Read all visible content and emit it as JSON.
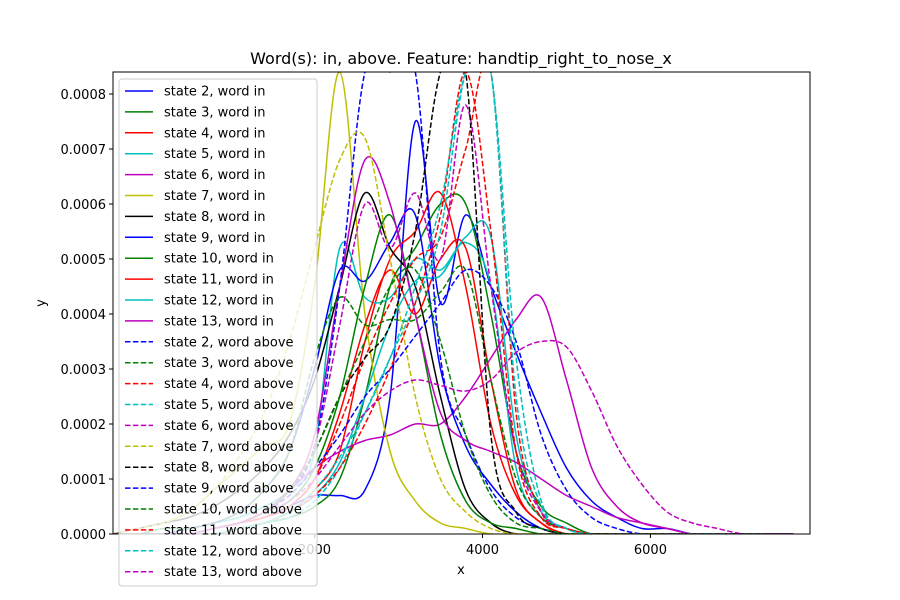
{
  "chart_data": {
    "type": "line",
    "title": "Word(s): in, above. Feature: handtip_right_to_nose_x",
    "xlabel": "x",
    "ylabel": "y",
    "xlim": [
      -400,
      7900
    ],
    "ylim": [
      0,
      0.00084
    ],
    "x_ticks": [
      2000,
      4000,
      6000
    ],
    "y_ticks": [
      0.0,
      0.0001,
      0.0002,
      0.0003,
      0.0004,
      0.0005,
      0.0006,
      0.0007,
      0.0008
    ],
    "y_tick_labels": [
      "0.0000",
      "0.0001",
      "0.0002",
      "0.0003",
      "0.0004",
      "0.0005",
      "0.0006",
      "0.0007",
      "0.0008"
    ],
    "grid": false,
    "legend_position": "upper-left",
    "x": [
      -400,
      -100,
      200,
      500,
      800,
      1100,
      1400,
      1700,
      2000,
      2300,
      2600,
      2900,
      3200,
      3500,
      3800,
      4100,
      4400,
      4700,
      5000,
      5300,
      5600,
      5900,
      6200,
      6500,
      6800,
      7100,
      7400,
      7700
    ],
    "series": [
      {
        "name": "state 2, word in",
        "color": "#0000ff",
        "dash": "solid",
        "values": [
          0.0,
          0.0,
          0.0,
          0.0,
          1e-05,
          2e-05,
          3e-05,
          5e-05,
          7e-05,
          7e-05,
          8e-05,
          0.00025,
          0.00075,
          0.00042,
          0.00058,
          0.00045,
          0.00033,
          0.00022,
          0.00012,
          6e-05,
          3e-05,
          1e-05,
          1e-05,
          0.0,
          0.0,
          0.0,
          0.0,
          0.0
        ]
      },
      {
        "name": "state 3, word in",
        "color": "#008000",
        "dash": "solid",
        "values": [
          0.0,
          0.0,
          0.0,
          0.0,
          0.0,
          1e-05,
          2e-05,
          3e-05,
          5e-05,
          0.0001,
          0.00025,
          0.00045,
          0.00052,
          0.0006,
          0.0006,
          0.0004,
          0.00015,
          5e-05,
          2e-05,
          0.0,
          0.0,
          0.0,
          0.0,
          0.0,
          0.0,
          0.0,
          0.0,
          0.0
        ]
      },
      {
        "name": "state 4, word in",
        "color": "#ff0000",
        "dash": "solid",
        "values": [
          0.0,
          0.0,
          0.0,
          0.0,
          0.0,
          1e-05,
          2e-05,
          4e-05,
          8e-05,
          0.00015,
          0.00035,
          0.0005,
          0.00055,
          0.00062,
          0.00045,
          0.0002,
          7e-05,
          2e-05,
          0.0,
          0.0,
          0.0,
          0.0,
          0.0,
          0.0,
          0.0,
          0.0,
          0.0,
          0.0
        ]
      },
      {
        "name": "state 5, word in",
        "color": "#00bfbf",
        "dash": "solid",
        "values": [
          0.0,
          0.0,
          1e-05,
          1e-05,
          2e-05,
          3e-05,
          5e-05,
          8e-05,
          0.00015,
          0.00052,
          0.00043,
          0.00043,
          0.0005,
          0.00048,
          0.00053,
          0.00045,
          0.00012,
          3e-05,
          1e-05,
          0.0,
          0.0,
          0.0,
          0.0,
          0.0,
          0.0,
          0.0,
          0.0,
          0.0
        ]
      },
      {
        "name": "state 6, word in",
        "color": "#bf00bf",
        "dash": "solid",
        "values": [
          0.0,
          0.0,
          0.0,
          0.0,
          1e-05,
          2e-05,
          4e-05,
          8e-05,
          0.00012,
          0.00015,
          0.00017,
          0.00018,
          0.0002,
          0.0002,
          0.00025,
          0.00032,
          0.00039,
          0.00043,
          0.00028,
          0.00012,
          5e-05,
          2e-05,
          1e-05,
          0.0,
          0.0,
          0.0,
          0.0,
          0.0
        ]
      },
      {
        "name": "state 7, word in",
        "color": "#bfbf00",
        "dash": "solid",
        "values": [
          0.0,
          1e-05,
          2e-05,
          4e-05,
          8e-05,
          0.00012,
          0.00016,
          0.0002,
          0.00045,
          0.00084,
          0.0004,
          0.00015,
          6e-05,
          2e-05,
          1e-05,
          0.0,
          0.0,
          0.0,
          0.0,
          0.0,
          0.0,
          0.0,
          0.0,
          0.0,
          0.0,
          0.0,
          0.0,
          0.0
        ]
      },
      {
        "name": "state 8, word in",
        "color": "#000000",
        "dash": "solid",
        "values": [
          0.0,
          1e-05,
          2e-05,
          3e-05,
          5e-05,
          8e-05,
          0.00012,
          0.00018,
          0.00028,
          0.00045,
          0.00062,
          0.00052,
          0.00045,
          0.00025,
          8e-05,
          2e-05,
          0.0,
          0.0,
          0.0,
          0.0,
          0.0,
          0.0,
          0.0,
          0.0,
          0.0,
          0.0,
          0.0,
          0.0
        ]
      },
      {
        "name": "state 9, word in",
        "color": "#0000ff",
        "dash": "solid",
        "values": [
          0.0,
          0.0,
          0.0,
          1e-05,
          2e-05,
          4e-05,
          8e-05,
          0.00015,
          0.0003,
          0.00048,
          0.00046,
          0.00053,
          0.00058,
          0.0003,
          0.00016,
          9e-05,
          4e-05,
          1e-05,
          0.0,
          0.0,
          0.0,
          0.0,
          0.0,
          0.0,
          0.0,
          0.0,
          0.0,
          0.0
        ]
      },
      {
        "name": "state 10, word in",
        "color": "#008000",
        "dash": "solid",
        "values": [
          0.0,
          0.0,
          0.0,
          0.0,
          1e-05,
          2e-05,
          4e-05,
          6e-05,
          0.00012,
          0.00025,
          0.00045,
          0.00058,
          0.0004,
          0.00018,
          6e-05,
          2e-05,
          1e-05,
          0.0,
          0.0,
          0.0,
          0.0,
          0.0,
          0.0,
          0.0,
          0.0,
          0.0,
          0.0,
          0.0
        ]
      },
      {
        "name": "state 11, word in",
        "color": "#ff0000",
        "dash": "solid",
        "values": [
          0.0,
          0.0,
          0.0,
          0.0,
          1e-05,
          2e-05,
          3e-05,
          5e-05,
          0.0001,
          0.00022,
          0.00038,
          0.00048,
          0.0004,
          0.0005,
          0.00052,
          0.00028,
          8e-05,
          2e-05,
          0.0,
          0.0,
          0.0,
          0.0,
          0.0,
          0.0,
          0.0,
          0.0,
          0.0,
          0.0
        ]
      },
      {
        "name": "state 12, word in",
        "color": "#00bfbf",
        "dash": "solid",
        "values": [
          0.0,
          0.0,
          0.0,
          0.0,
          0.0,
          1e-05,
          2e-05,
          4e-05,
          7e-05,
          0.00013,
          0.00025,
          0.00038,
          0.00046,
          0.00047,
          0.00054,
          0.00054,
          0.00018,
          4e-05,
          1e-05,
          0.0,
          0.0,
          0.0,
          0.0,
          0.0,
          0.0,
          0.0,
          0.0,
          0.0
        ]
      },
      {
        "name": "state 13, word in",
        "color": "#bf00bf",
        "dash": "solid",
        "values": [
          0.0,
          0.0,
          0.0,
          0.0,
          1e-05,
          2e-05,
          4e-05,
          8e-05,
          0.00018,
          0.00045,
          0.00068,
          0.0006,
          0.0004,
          0.00022,
          0.00017,
          0.00015,
          0.00013,
          0.0001,
          7e-05,
          5e-05,
          3e-05,
          2e-05,
          1e-05,
          0.0,
          0.0,
          0.0,
          0.0,
          0.0
        ]
      },
      {
        "name": "state 2, word above",
        "color": "#0000ff",
        "dash": "dashed",
        "values": [
          0.0,
          0.0,
          0.0,
          0.0,
          1e-05,
          2e-05,
          4e-05,
          8e-05,
          0.00016,
          0.00045,
          0.00084,
          0.00084,
          0.00084,
          0.00032,
          0.00018,
          8e-05,
          3e-05,
          1e-05,
          0.0,
          0.0,
          0.0,
          0.0,
          0.0,
          0.0,
          0.0,
          0.0,
          0.0,
          0.0
        ]
      },
      {
        "name": "state 3, word above",
        "color": "#008000",
        "dash": "dashed",
        "values": [
          0.0,
          0.0,
          1e-05,
          1e-05,
          2e-05,
          4e-05,
          8e-05,
          0.00015,
          0.00032,
          0.00043,
          0.00038,
          0.00039,
          0.00039,
          0.00044,
          0.00048,
          0.00028,
          0.0001,
          3e-05,
          1e-05,
          0.0,
          0.0,
          0.0,
          0.0,
          0.0,
          0.0,
          0.0,
          0.0,
          0.0
        ]
      },
      {
        "name": "state 4, word above",
        "color": "#ff0000",
        "dash": "dashed",
        "values": [
          0.0,
          0.0,
          0.0,
          0.0,
          1e-05,
          2e-05,
          3e-05,
          5e-05,
          0.0001,
          0.0002,
          0.00032,
          0.00042,
          0.0005,
          0.00054,
          0.0007,
          0.00084,
          0.00022,
          4e-05,
          1e-05,
          0.0,
          0.0,
          0.0,
          0.0,
          0.0,
          0.0,
          0.0,
          0.0,
          0.0
        ]
      },
      {
        "name": "state 5, word above",
        "color": "#00bfbf",
        "dash": "dashed",
        "values": [
          0.0,
          0.0,
          0.0,
          0.0,
          0.0,
          1e-05,
          2e-05,
          3e-05,
          6e-05,
          0.00012,
          0.00022,
          0.00032,
          0.00042,
          0.00055,
          0.00084,
          0.00084,
          0.00025,
          5e-05,
          1e-05,
          0.0,
          0.0,
          0.0,
          0.0,
          0.0,
          0.0,
          0.0,
          0.0,
          0.0
        ]
      },
      {
        "name": "state 6, word above",
        "color": "#bf00bf",
        "dash": "dashed",
        "values": [
          0.0,
          0.0,
          0.0,
          0.0,
          1e-05,
          2e-05,
          4e-05,
          8e-05,
          0.00016,
          0.00038,
          0.0006,
          0.00052,
          0.00062,
          0.0005,
          0.00078,
          0.00045,
          0.00015,
          4e-05,
          1e-05,
          0.0,
          0.0,
          0.0,
          0.0,
          0.0,
          0.0,
          0.0,
          0.0,
          0.0
        ]
      },
      {
        "name": "state 7, word above",
        "color": "#bfbf00",
        "dash": "dashed",
        "values": [
          0.0,
          1e-05,
          2e-05,
          4e-05,
          8e-05,
          0.00014,
          0.00022,
          0.00035,
          0.00052,
          0.00068,
          0.00072,
          0.0005,
          0.00025,
          0.0001,
          4e-05,
          1e-05,
          0.0,
          0.0,
          0.0,
          0.0,
          0.0,
          0.0,
          0.0,
          0.0,
          0.0,
          0.0,
          0.0,
          0.0
        ]
      },
      {
        "name": "state 8, word above",
        "color": "#000000",
        "dash": "dashed",
        "values": [
          0.0,
          0.0,
          0.0,
          0.0,
          1e-05,
          2e-05,
          4e-05,
          8e-05,
          0.00015,
          0.00025,
          0.00032,
          0.00038,
          0.00055,
          0.00084,
          0.00084,
          0.00018,
          4e-05,
          1e-05,
          0.0,
          0.0,
          0.0,
          0.0,
          0.0,
          0.0,
          0.0,
          0.0,
          0.0,
          0.0
        ]
      },
      {
        "name": "state 9, word above",
        "color": "#0000ff",
        "dash": "dashed",
        "values": [
          0.0,
          0.0,
          0.0,
          0.0,
          1e-05,
          2e-05,
          4e-05,
          7e-05,
          0.00012,
          0.00018,
          0.00025,
          0.0003,
          0.00036,
          0.00042,
          0.00048,
          0.00045,
          0.00035,
          0.00018,
          8e-05,
          3e-05,
          1e-05,
          0.0,
          0.0,
          0.0,
          0.0,
          0.0,
          0.0,
          0.0
        ]
      },
      {
        "name": "state 10, word above",
        "color": "#008000",
        "dash": "dashed",
        "values": [
          0.0,
          0.0,
          0.0,
          0.0,
          1e-05,
          2e-05,
          4e-05,
          8e-05,
          0.00015,
          0.00025,
          0.00035,
          0.00045,
          0.00048,
          0.00035,
          0.00018,
          7e-05,
          2e-05,
          1e-05,
          0.0,
          0.0,
          0.0,
          0.0,
          0.0,
          0.0,
          0.0,
          0.0,
          0.0,
          0.0
        ]
      },
      {
        "name": "state 11, word above",
        "color": "#ff0000",
        "dash": "dashed",
        "values": [
          0.0,
          0.0,
          0.0,
          0.0,
          0.0,
          1e-05,
          2e-05,
          4e-05,
          7e-05,
          0.00012,
          0.0002,
          0.0003,
          0.00042,
          0.00058,
          0.00084,
          0.00055,
          0.00015,
          3e-05,
          1e-05,
          0.0,
          0.0,
          0.0,
          0.0,
          0.0,
          0.0,
          0.0,
          0.0,
          0.0
        ]
      },
      {
        "name": "state 12, word above",
        "color": "#00bfbf",
        "dash": "dashed",
        "values": [
          0.0,
          0.0,
          0.0,
          0.0,
          0.0,
          1e-05,
          2e-05,
          4e-05,
          8e-05,
          0.00014,
          0.00022,
          0.00032,
          0.00045,
          0.0006,
          0.00084,
          0.00084,
          0.00032,
          6e-05,
          1e-05,
          0.0,
          0.0,
          0.0,
          0.0,
          0.0,
          0.0,
          0.0,
          0.0,
          0.0
        ]
      },
      {
        "name": "state 13, word above",
        "color": "#bf00bf",
        "dash": "dashed",
        "values": [
          0.0,
          0.0,
          0.0,
          0.0,
          1e-05,
          2e-05,
          4e-05,
          6e-05,
          0.0001,
          0.00016,
          0.00022,
          0.00026,
          0.00028,
          0.00027,
          0.00026,
          0.00028,
          0.00033,
          0.00035,
          0.00034,
          0.00026,
          0.00016,
          9e-05,
          4e-05,
          2e-05,
          1e-05,
          0.0,
          0.0,
          0.0
        ]
      }
    ]
  }
}
